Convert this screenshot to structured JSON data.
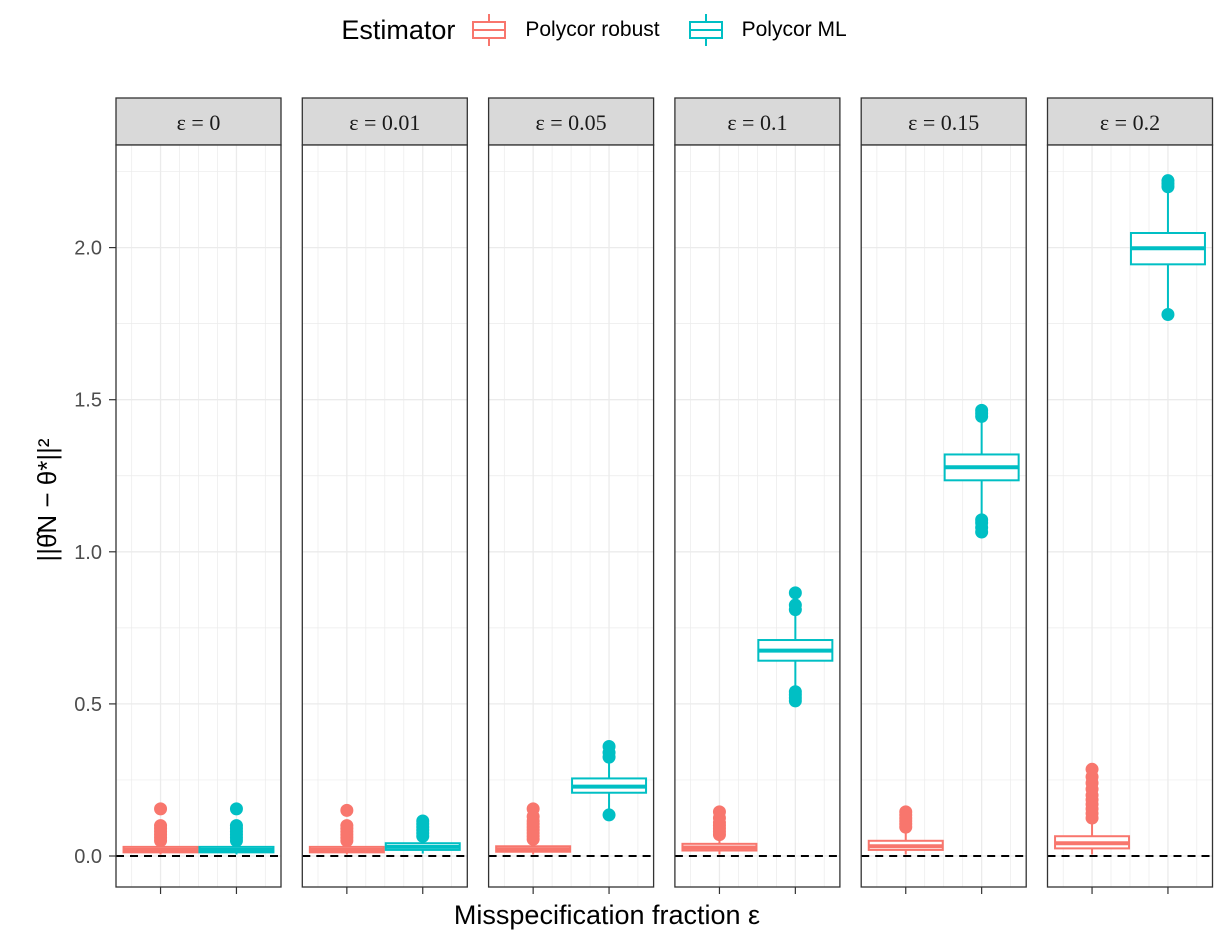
{
  "legend": {
    "title": "Estimator",
    "items": [
      {
        "label": "Polycor robust",
        "color": "#F8766D"
      },
      {
        "label": "Polycor ML",
        "color": "#00BFC4"
      }
    ]
  },
  "axes": {
    "x_title": "Misspecification fraction ε",
    "y_title": "||θ̂N − θ*||²"
  },
  "chart_data": {
    "type": "box",
    "facet_variable": "ε",
    "facets": [
      "ε = 0",
      "ε = 0.01",
      "ε = 0.05",
      "ε = 0.1",
      "ε = 0.15",
      "ε = 0.2"
    ],
    "series": [
      {
        "name": "Polycor robust",
        "color": "#F8766D",
        "boxes": [
          {
            "whisker_low": 0.005,
            "q1": 0.012,
            "median": 0.02,
            "q3": 0.03,
            "whisker_high": 0.045,
            "outliers": [
              0.05,
              0.06,
              0.07,
              0.08,
              0.09,
              0.1,
              0.155
            ]
          },
          {
            "whisker_low": 0.005,
            "q1": 0.012,
            "median": 0.02,
            "q3": 0.03,
            "whisker_high": 0.045,
            "outliers": [
              0.05,
              0.06,
              0.07,
              0.08,
              0.09,
              0.1,
              0.15
            ]
          },
          {
            "whisker_low": 0.005,
            "q1": 0.014,
            "median": 0.022,
            "q3": 0.032,
            "whisker_high": 0.05,
            "outliers": [
              0.055,
              0.065,
              0.075,
              0.085,
              0.095,
              0.105,
              0.115,
              0.13,
              0.155
            ]
          },
          {
            "whisker_low": 0.005,
            "q1": 0.018,
            "median": 0.028,
            "q3": 0.04,
            "whisker_high": 0.065,
            "outliers": [
              0.07,
              0.08,
              0.09,
              0.1,
              0.11,
              0.125,
              0.145
            ]
          },
          {
            "whisker_low": 0.005,
            "q1": 0.02,
            "median": 0.032,
            "q3": 0.05,
            "whisker_high": 0.09,
            "outliers": [
              0.095,
              0.105,
              0.115,
              0.125,
              0.135,
              0.145
            ]
          },
          {
            "whisker_low": 0.005,
            "q1": 0.025,
            "median": 0.042,
            "q3": 0.065,
            "whisker_high": 0.12,
            "outliers": [
              0.125,
              0.14,
              0.155,
              0.17,
              0.185,
              0.2,
              0.22,
              0.24,
              0.26,
              0.285
            ]
          }
        ]
      },
      {
        "name": "Polycor ML",
        "color": "#00BFC4",
        "boxes": [
          {
            "whisker_low": 0.005,
            "q1": 0.012,
            "median": 0.02,
            "q3": 0.03,
            "whisker_high": 0.045,
            "outliers": [
              0.05,
              0.06,
              0.07,
              0.08,
              0.09,
              0.1,
              0.155
            ]
          },
          {
            "whisker_low": 0.008,
            "q1": 0.02,
            "median": 0.03,
            "q3": 0.042,
            "whisker_high": 0.06,
            "outliers": [
              0.065,
              0.075,
              0.085,
              0.095,
              0.105,
              0.115
            ]
          },
          {
            "whisker_low": 0.145,
            "q1": 0.208,
            "median": 0.228,
            "q3": 0.255,
            "whisker_high": 0.31,
            "outliers": [
              0.135,
              0.325,
              0.34,
              0.36
            ]
          },
          {
            "whisker_low": 0.55,
            "q1": 0.642,
            "median": 0.675,
            "q3": 0.71,
            "whisker_high": 0.805,
            "outliers": [
              0.51,
              0.52,
              0.53,
              0.54,
              0.81,
              0.825,
              0.865
            ]
          },
          {
            "whisker_low": 1.115,
            "q1": 1.235,
            "median": 1.278,
            "q3": 1.32,
            "whisker_high": 1.44,
            "outliers": [
              1.065,
              1.08,
              1.095,
              1.105,
              1.445,
              1.455,
              1.465
            ]
          },
          {
            "whisker_low": 1.8,
            "q1": 1.945,
            "median": 1.998,
            "q3": 2.048,
            "whisker_high": 2.19,
            "outliers": [
              1.78,
              2.2,
              2.21,
              2.22
            ]
          }
        ]
      }
    ],
    "y_ticks": [
      "0.0",
      "0.5",
      "1.0",
      "1.5",
      "2.0"
    ],
    "y_tick_values": [
      0,
      0.5,
      1.0,
      1.5,
      2.0
    ],
    "ylim": [
      -0.1,
      2.3
    ],
    "reference_line": {
      "y": 0,
      "style": "dashed"
    },
    "grid": true,
    "legend_position": "top"
  }
}
